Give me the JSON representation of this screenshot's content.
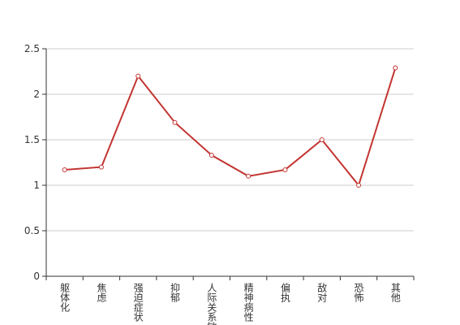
{
  "chart_data": {
    "type": "line",
    "categories": [
      "躯体化",
      "焦虑",
      "强迫症状",
      "抑郁",
      "人际关系敏感",
      "精神病性",
      "偏执",
      "敌对",
      "恐怖",
      "其他"
    ],
    "values": [
      1.17,
      1.2,
      2.2,
      1.69,
      1.33,
      1.1,
      1.17,
      1.5,
      1.0,
      2.29
    ],
    "color": "#c23531",
    "ylim": [
      0,
      2.5
    ],
    "yticks": [
      0,
      0.5,
      1,
      1.5,
      2,
      2.5
    ],
    "grid": true
  }
}
